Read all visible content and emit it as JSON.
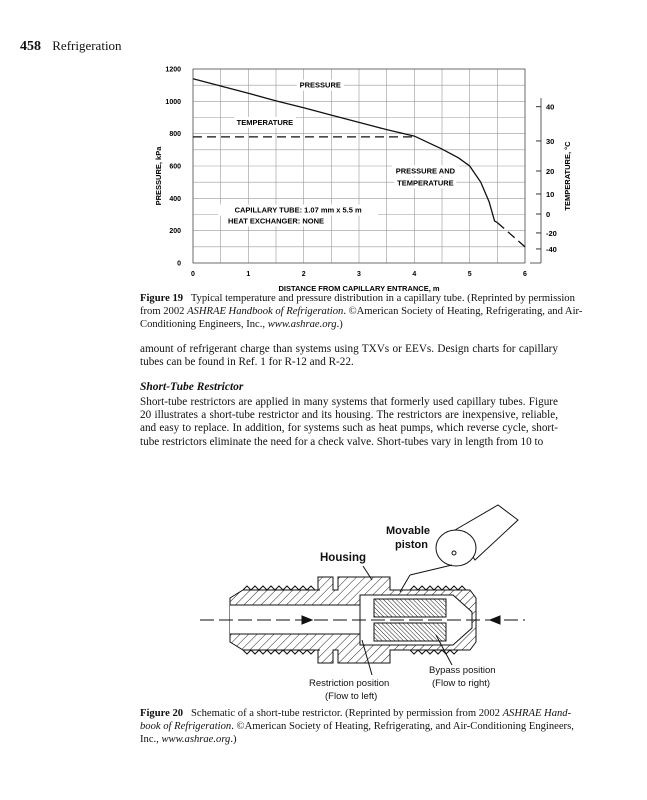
{
  "header": {
    "page_number": "458",
    "running_title": "Refrigeration"
  },
  "chart_data": {
    "type": "line",
    "xlabel": "DISTANCE FROM CAPILLARY ENTRANCE, m",
    "ylabel": "PRESSURE, kPa",
    "y2label": "TEMPERATURE, °C",
    "xlim": [
      0,
      6
    ],
    "ylim": [
      0,
      1200
    ],
    "xticks": [
      "0",
      "1",
      "2",
      "3",
      "4",
      "5",
      "6"
    ],
    "yticks": [
      "0",
      "200",
      "400",
      "600",
      "800",
      "1000",
      "1200"
    ],
    "right_axis_ticks": [
      {
        "label": "40",
        "kpa": 967
      },
      {
        "label": "30",
        "kpa": 755
      },
      {
        "label": "20",
        "kpa": 569
      },
      {
        "label": "10",
        "kpa": 427
      },
      {
        "label": "0",
        "kpa": 303
      },
      {
        "label": "-20",
        "kpa": 186
      },
      {
        "label": "-40",
        "kpa": 87
      }
    ],
    "grid": true,
    "series": [
      {
        "name": "PRESSURE",
        "style": "solid",
        "x": [
          0,
          0.5,
          1,
          1.5,
          2,
          2.5,
          3,
          3.5,
          4,
          4.5,
          4.8,
          5,
          5.2,
          5.35,
          5.45,
          5.5
        ],
        "y": [
          1140,
          1095,
          1050,
          1003,
          960,
          915,
          870,
          825,
          785,
          705,
          650,
          600,
          500,
          380,
          260,
          250
        ]
      },
      {
        "name": "TEMPERATURE",
        "style": "dashed",
        "x": [
          0,
          4
        ],
        "y": [
          780,
          780
        ]
      },
      {
        "name": "",
        "style": "dashed",
        "x": [
          5.5,
          6
        ],
        "y": [
          250,
          100
        ]
      }
    ],
    "annotations": [
      {
        "text": "PRESSURE",
        "x": 2.3,
        "y": 1085
      },
      {
        "text": "TEMPERATURE",
        "x": 1.3,
        "y": 855
      },
      {
        "text": "PRESSURE AND",
        "x": 4.2,
        "y": 555
      },
      {
        "text": "TEMPERATURE",
        "x": 4.2,
        "y": 480
      },
      {
        "text": "CAPILLARY TUBE: 1.07 mm x 5.5 m",
        "x": 1.9,
        "y": 312
      },
      {
        "text": "HEAT EXCHANGER: NONE",
        "x": 1.5,
        "y": 245
      }
    ]
  },
  "fig19_caption": [
    [
      {
        "t": "Figure 19",
        "s": "b"
      },
      {
        "t": "   Typical temperature and pressure distribution in a capillary tube. (Reprinted by permission",
        "s": ""
      }
    ],
    [
      {
        "t": "from 2002 ",
        "s": ""
      },
      {
        "t": "ASHRAE Handbook of Refrigeration",
        "s": "i"
      },
      {
        "t": ". ©American Society of Heating, Refrigerating, and Air-",
        "s": ""
      }
    ],
    [
      {
        "t": "Conditioning Engineers, Inc., ",
        "s": ""
      },
      {
        "t": "www.ashrae.org",
        "s": "i"
      },
      {
        "t": ".)",
        "s": ""
      }
    ]
  ],
  "para1": [
    "amount of refrigerant charge than systems using TXVs or EEVs. Design charts for capillary",
    "tubes can be found in Ref. 1 for R-12 and R-22."
  ],
  "section_heading": "Short-Tube Restrictor",
  "para2": [
    "Short-tube restrictors are applied in many systems that formerly used capillary tubes. Figure",
    "20 illustrates a short-tube restrictor and its housing. The restrictors are inexpensive, reliable,",
    "and easy to replace. In addition, for systems such as heat pumps, which reverse cycle, short-",
    "tube restrictors eliminate the need for a check valve. Short-tubes vary in length from 10 to"
  ],
  "diagram": {
    "labels": {
      "movable": "Movable",
      "piston": "piston",
      "housing": "Housing",
      "restriction": "Restriction position",
      "flow_left": "(Flow to left)",
      "bypass": "Bypass position",
      "flow_right": "(Flow to right)"
    }
  },
  "fig20_caption": [
    [
      {
        "t": "Figure 20",
        "s": "b"
      },
      {
        "t": "   Schematic of a short-tube restrictor. (Reprinted by permission from 2002 ",
        "s": ""
      },
      {
        "t": "ASHRAE Hand-",
        "s": "i"
      }
    ],
    [
      {
        "t": "book of Refrigeration",
        "s": "i"
      },
      {
        "t": ". ©American Society of Heating, Refrigerating, and Air-Conditioning Engineers,",
        "s": ""
      }
    ],
    [
      {
        "t": "Inc., ",
        "s": ""
      },
      {
        "t": "www.ashrae.org",
        "s": "i"
      },
      {
        "t": ".)",
        "s": ""
      }
    ]
  ]
}
